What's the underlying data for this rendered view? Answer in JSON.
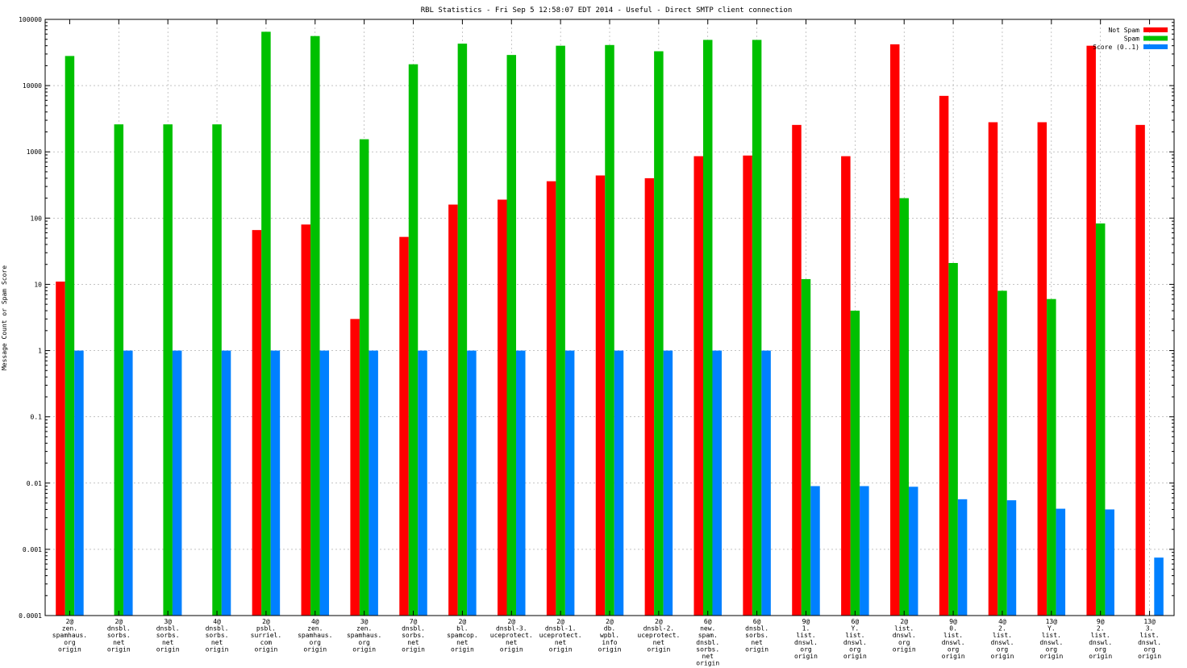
{
  "chart_data": {
    "type": "bar",
    "title": "RBL Statistics - Fri Sep  5 12:58:07 EDT 2014 - Useful - Direct SMTP client connection",
    "xlabel": "",
    "ylabel": "Message Count or Spam Score",
    "yscale": "log",
    "ylim": [
      0.0001,
      100000
    ],
    "yticks": [
      "0.0001",
      "0.001",
      "0.01",
      "0.1",
      "1",
      "10",
      "100",
      "1000",
      "10000",
      "100000"
    ],
    "grid": true,
    "legend_position": "top-right",
    "categories": [
      [
        "2@",
        "zen.",
        "spamhaus.",
        "org",
        "origin"
      ],
      [
        "2@",
        "dnsbl.",
        "sorbs.",
        "net",
        "origin"
      ],
      [
        "3@",
        "dnsbl.",
        "sorbs.",
        "net",
        "origin"
      ],
      [
        "4@",
        "dnsbl.",
        "sorbs.",
        "net",
        "origin"
      ],
      [
        "2@",
        "psbl.",
        "surriel.",
        "com",
        "origin"
      ],
      [
        "4@",
        "zen.",
        "spamhaus.",
        "org",
        "origin"
      ],
      [
        "3@",
        "zen.",
        "spamhaus.",
        "org",
        "origin"
      ],
      [
        "7@",
        "dnsbl.",
        "sorbs.",
        "net",
        "origin"
      ],
      [
        "2@",
        "bl.",
        "spamcop.",
        "net",
        "origin"
      ],
      [
        "2@",
        "dnsbl-3.",
        "uceprotect.",
        "net",
        "origin"
      ],
      [
        "2@",
        "dnsbl-1.",
        "uceprotect.",
        "net",
        "origin"
      ],
      [
        "2@",
        "db.",
        "wpbl.",
        "info",
        "origin"
      ],
      [
        "2@",
        "dnsbl-2.",
        "uceprotect.",
        "net",
        "origin"
      ],
      [
        "6@",
        "new.",
        "spam.",
        "dnsbl.",
        "sorbs.",
        "net",
        "origin"
      ],
      [
        "6@",
        "dnsbl.",
        "sorbs.",
        "net",
        "origin"
      ],
      [
        "9@",
        "1.",
        "list.",
        "dnswl.",
        "org",
        "origin"
      ],
      [
        "6@",
        "Y.",
        "list.",
        "dnswl.",
        "org",
        "origin"
      ],
      [
        "2@",
        "list.",
        "dnswl.",
        "org",
        "origin"
      ],
      [
        "9@",
        "0.",
        "list.",
        "dnswl.",
        "org",
        "origin"
      ],
      [
        "4@",
        "2.",
        "list.",
        "dnswl.",
        "org",
        "origin"
      ],
      [
        "13@",
        "Y.",
        "list.",
        "dnswl.",
        "org",
        "origin"
      ],
      [
        "9@",
        "2.",
        "list.",
        "dnswl.",
        "org",
        "origin"
      ],
      [
        "13@",
        "3.",
        "list.",
        "dnswl.",
        "org",
        "origin"
      ]
    ],
    "series": [
      {
        "name": "Not Spam",
        "color": "#ff0000",
        "values": [
          11,
          null,
          null,
          null,
          66,
          80,
          3,
          52,
          160,
          190,
          360,
          440,
          400,
          860,
          880,
          2550,
          860,
          42000,
          7000,
          2800,
          2800,
          40000,
          2550
        ]
      },
      {
        "name": "Spam",
        "color": "#00c000",
        "values": [
          28000,
          2600,
          2600,
          2600,
          65000,
          56000,
          1550,
          21000,
          43000,
          29000,
          40000,
          41000,
          33000,
          49000,
          49000,
          12,
          4,
          200,
          21,
          8,
          6,
          83,
          null
        ]
      },
      {
        "name": "Score (0..1)",
        "color": "#0080ff",
        "values": [
          1,
          1,
          1,
          1,
          1,
          1,
          1,
          1,
          1,
          1,
          1,
          1,
          1,
          1,
          1,
          0.009,
          0.009,
          0.0088,
          0.0057,
          0.0055,
          0.0041,
          0.004,
          0.00075
        ]
      }
    ]
  }
}
